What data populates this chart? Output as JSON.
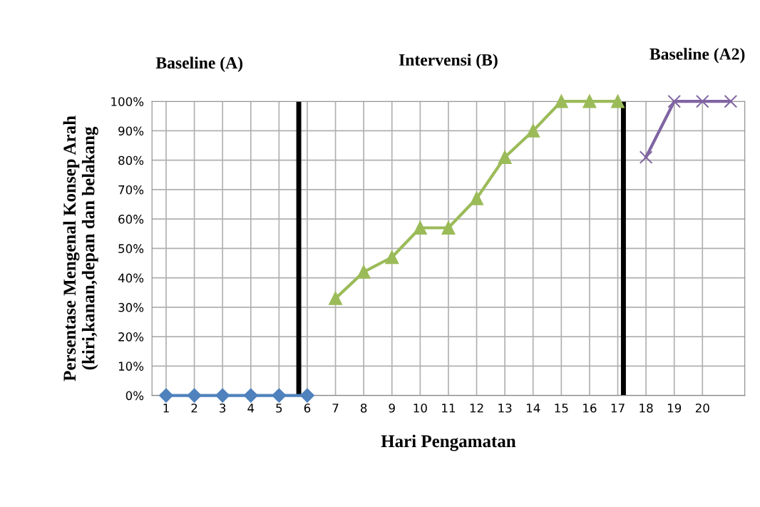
{
  "chart_data": {
    "type": "line",
    "x": [
      1,
      2,
      3,
      4,
      5,
      6,
      7,
      8,
      9,
      10,
      11,
      12,
      13,
      14,
      15,
      16,
      17,
      18,
      19,
      20,
      21
    ],
    "xlabel": "Hari Pengamatan",
    "ylabel": "Persentase Mengenal Konsep Arah\n(kiri,kanan,depan dan belakang",
    "annotations": [
      "Baseline (A)",
      "Intervensi (B)",
      "Baseline (A2)"
    ],
    "xlim": [
      0.5,
      21.5
    ],
    "xticks": [
      1,
      2,
      3,
      4,
      5,
      6,
      7,
      8,
      9,
      10,
      11,
      12,
      13,
      14,
      15,
      16,
      17,
      18,
      19,
      20
    ],
    "ylim": [
      0,
      100
    ],
    "yticks": [
      {
        "value": 0,
        "label": "0%"
      },
      {
        "value": 10,
        "label": "10%"
      },
      {
        "value": 20,
        "label": "20%"
      },
      {
        "value": 30,
        "label": "30%"
      },
      {
        "value": 40,
        "label": "40%"
      },
      {
        "value": 50,
        "label": "50%"
      },
      {
        "value": 60,
        "label": "60%"
      },
      {
        "value": 70,
        "label": "70%"
      },
      {
        "value": 80,
        "label": "80%"
      },
      {
        "value": 90,
        "label": "90%"
      },
      {
        "value": 100,
        "label": "100%"
      }
    ],
    "grid": true,
    "line_style": "solid",
    "series": [
      {
        "color": "#4f81bd",
        "marker": "diamond",
        "values": [
          0,
          0,
          0,
          0,
          0,
          0,
          null,
          null,
          null,
          null,
          null,
          null,
          null,
          null,
          null,
          null,
          null,
          null,
          null,
          null,
          null
        ]
      },
      {
        "color": "#9bbb59",
        "marker": "triangle",
        "values": [
          null,
          null,
          null,
          null,
          null,
          null,
          33,
          42,
          47,
          57,
          57,
          67,
          81,
          90,
          100,
          100,
          100,
          null,
          null,
          null,
          null
        ]
      },
      {
        "color": "#8064a2",
        "marker": "cross",
        "values": [
          null,
          null,
          null,
          null,
          null,
          null,
          null,
          null,
          null,
          null,
          null,
          null,
          null,
          null,
          null,
          null,
          null,
          81,
          100,
          100,
          100
        ]
      }
    ],
    "ref_lines": [
      {
        "axis": "x",
        "value": 5.7,
        "color": "#000000",
        "line_style": "solid"
      },
      {
        "axis": "x",
        "value": 17.2,
        "color": "#000000",
        "line_style": "solid"
      }
    ]
  }
}
